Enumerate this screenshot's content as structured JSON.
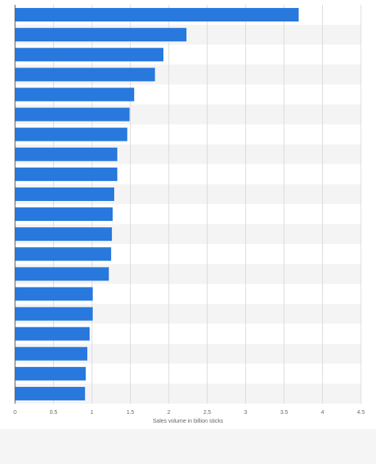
{
  "chart_data": {
    "type": "bar",
    "orientation": "horizontal",
    "xlabel": "Sales volume in billion sticks",
    "xlim": [
      0,
      4.5
    ],
    "xticks": [
      0,
      0.5,
      1,
      1.5,
      2,
      2.5,
      3,
      3.5,
      4,
      4.5
    ],
    "xtick_labels": [
      "0",
      "0.5",
      "1",
      "1.5",
      "2",
      "2.5",
      "3",
      "3.5",
      "4",
      "4.5"
    ],
    "category_labels_visible": false,
    "grid": "vertical",
    "values": [
      3.69,
      2.23,
      1.93,
      1.82,
      1.55,
      1.49,
      1.46,
      1.33,
      1.33,
      1.29,
      1.27,
      1.26,
      1.25,
      1.22,
      1.01,
      1.01,
      0.97,
      0.94,
      0.92,
      0.91
    ],
    "colors": {
      "bar": "#2878dd",
      "band_light": "#ffffff",
      "band_dark": "#f4f4f4",
      "grid": "#dcdcdc",
      "axis": "#555555",
      "tick_text": "#666666",
      "page": "#f5f5f5"
    }
  }
}
